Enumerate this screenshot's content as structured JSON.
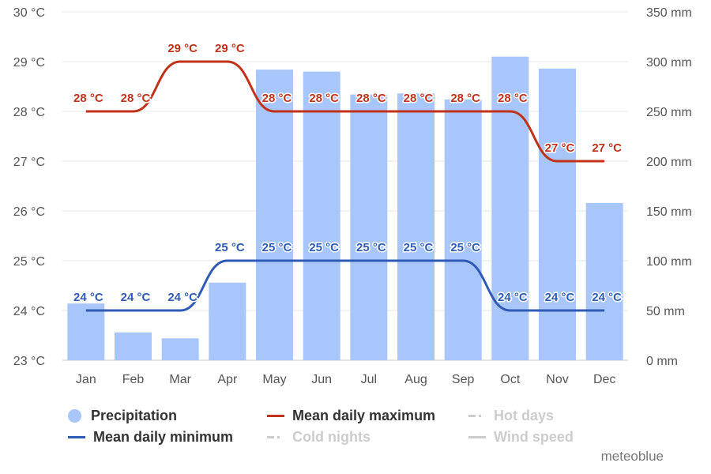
{
  "chart_data": {
    "type": "bar",
    "categories": [
      "Jan",
      "Feb",
      "Mar",
      "Apr",
      "May",
      "Jun",
      "Jul",
      "Aug",
      "Sep",
      "Oct",
      "Nov",
      "Dec"
    ],
    "series": [
      {
        "name": "Precipitation",
        "type": "bar",
        "axis": "right",
        "color": "#a9c6fa",
        "values": [
          57,
          28,
          22,
          78,
          292,
          290,
          267,
          268,
          262,
          305,
          293,
          158
        ]
      },
      {
        "name": "Mean daily maximum",
        "type": "line",
        "axis": "left",
        "color": "#c0331a",
        "values": [
          28,
          28,
          29,
          29,
          28,
          28,
          28,
          28,
          28,
          28,
          27,
          27
        ]
      },
      {
        "name": "Mean daily minimum",
        "type": "line",
        "axis": "left",
        "color": "#2f5bb5",
        "values": [
          24,
          24,
          24,
          25,
          25,
          25,
          25,
          25,
          25,
          24,
          24,
          24
        ]
      }
    ],
    "y_left": {
      "unit": "°C",
      "ylim": [
        23,
        30
      ],
      "ticks": [
        23,
        24,
        25,
        26,
        27,
        28,
        29,
        30
      ]
    },
    "y_right": {
      "unit": "mm",
      "ylim": [
        0,
        350
      ],
      "ticks": [
        0,
        50,
        100,
        150,
        200,
        250,
        300,
        350
      ]
    },
    "grid": true,
    "legend_position": "bottom",
    "legend_inactive": [
      "Hot days",
      "Cold nights",
      "Wind speed"
    ]
  },
  "legend": {
    "precipitation": "Precipitation",
    "max": "Mean daily maximum",
    "hot": "Hot days",
    "min": "Mean daily minimum",
    "cold": "Cold nights",
    "wind": "Wind speed"
  },
  "brand": "meteoblue"
}
